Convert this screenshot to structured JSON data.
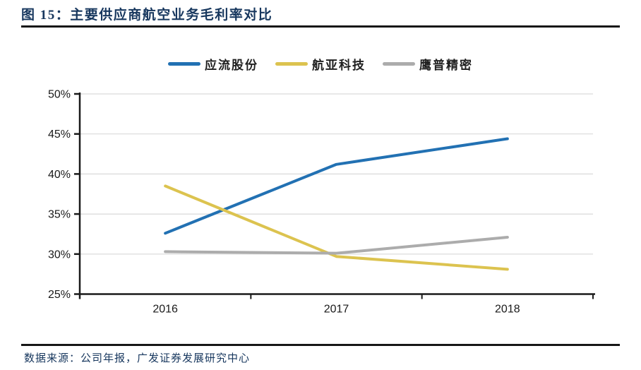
{
  "header": {
    "title": "图 15：主要供应商航空业务毛利率对比"
  },
  "footer": {
    "source": "数据来源：公司年报，广发证券发展研究中心"
  },
  "chart_data": {
    "type": "line",
    "title": "主要供应商航空业务毛利率对比",
    "categories": [
      "2016",
      "2017",
      "2018"
    ],
    "series": [
      {
        "name": "应流股份",
        "color": "#2271B3",
        "values": [
          32.6,
          41.2,
          44.4
        ]
      },
      {
        "name": "航亚科技",
        "color": "#DCC34F",
        "values": [
          38.5,
          29.7,
          28.1
        ]
      },
      {
        "name": "鹰普精密",
        "color": "#ACACAC",
        "values": [
          30.3,
          30.1,
          32.1
        ]
      }
    ],
    "unit": "%",
    "ylim": [
      25,
      50
    ],
    "ytick_step": 5,
    "ytick_labels": [
      "25%",
      "30%",
      "35%",
      "40%",
      "45%",
      "50%"
    ],
    "grid": true,
    "legend_position": "top",
    "grid_color": "#D9D9D9",
    "axis_color": "#1A1A1A",
    "tick_color": "#1A1A1A"
  }
}
